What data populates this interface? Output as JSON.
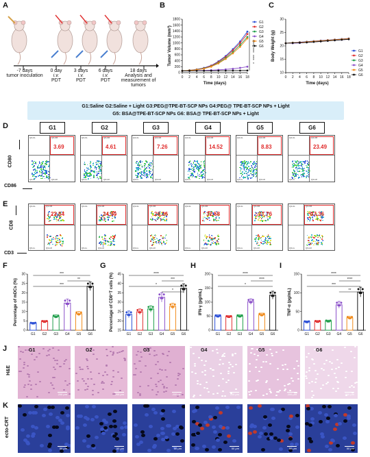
{
  "panels": [
    "A",
    "B",
    "C",
    "D",
    "E",
    "F",
    "G",
    "H",
    "I",
    "J",
    "K"
  ],
  "schematic": {
    "steps": [
      {
        "day": "-7 days",
        "desc1": "tumor inoculation",
        "desc2": ""
      },
      {
        "day": "0 day",
        "desc1": "i.v.",
        "desc2": "PDT"
      },
      {
        "day": "3 days",
        "desc1": "i.v.",
        "desc2": "PDT"
      },
      {
        "day": "6 days",
        "desc1": "i.v.",
        "desc2": "PDT"
      },
      {
        "day": "18 days",
        "desc1": "Analysis and",
        "desc2": "measurement of"
      },
      {
        "day": "",
        "desc1": "tumors",
        "desc2": ""
      }
    ]
  },
  "groups": {
    "line1": "G1:Saline  G2:Saline + Light  G3:PEG@TPE-BT-SCP NPs  G4:PEG@ TPE-BT-SCP NPs + Light",
    "line2": "G5: BSA@TPE-BT-SCP NPs        G6: BSA@ TPE-BT-SCP NPs + Light",
    "tabs": [
      "G1",
      "G2",
      "G3",
      "G4",
      "G5",
      "G6"
    ]
  },
  "colors": {
    "G1": "#2b4fd6",
    "G2": "#e03030",
    "G3": "#1f9e4a",
    "G4": "#8a4fc9",
    "G5": "#f08a1a",
    "G6": "#111111"
  },
  "panelD": {
    "ylabel": "CD80",
    "xlabel": "CD86",
    "values": [
      "3.69",
      "4.61",
      "7.26",
      "14.52",
      "8.83",
      "23.49"
    ]
  },
  "panelE": {
    "ylabel": "CD8",
    "xlabel": "CD3",
    "values": [
      "23.54",
      "24.90",
      "26.36",
      "32.58",
      "27.76",
      "37.36"
    ]
  },
  "chart_data": [
    {
      "type": "line",
      "panel": "B",
      "xlabel": "Time (days)",
      "ylabel": "Tumor Volume (mm³)",
      "x": [
        0,
        2,
        4,
        6,
        8,
        10,
        12,
        14,
        16,
        18
      ],
      "xticks": [
        "0",
        "2",
        "4",
        "6",
        "8",
        "10",
        "12",
        "14",
        "16",
        "18"
      ],
      "yticks": [
        "0",
        "200",
        "400",
        "600",
        "800",
        "1000",
        "1200",
        "1400",
        "1600",
        "1800"
      ],
      "ylim": [
        0,
        1800
      ],
      "series": [
        {
          "name": "G1",
          "values": [
            60,
            80,
            110,
            160,
            240,
            380,
            560,
            790,
            1050,
            1380
          ]
        },
        {
          "name": "G2",
          "values": [
            60,
            78,
            105,
            150,
            230,
            360,
            530,
            750,
            1000,
            1300
          ]
        },
        {
          "name": "G3",
          "values": [
            60,
            75,
            100,
            140,
            210,
            330,
            490,
            690,
            930,
            1200
          ]
        },
        {
          "name": "G4",
          "values": [
            60,
            62,
            68,
            74,
            82,
            95,
            110,
            130,
            160,
            200
          ]
        },
        {
          "name": "G5",
          "values": [
            60,
            72,
            95,
            130,
            200,
            310,
            460,
            650,
            870,
            1150
          ]
        },
        {
          "name": "G6",
          "values": [
            60,
            60,
            61,
            62,
            63,
            64,
            66,
            68,
            70,
            72
          ]
        }
      ],
      "sig": [
        "****",
        "****",
        "****",
        "*"
      ]
    },
    {
      "type": "line",
      "panel": "C",
      "xlabel": "Time (days)",
      "ylabel": "Body Weight (g)",
      "x": [
        0,
        2,
        4,
        6,
        8,
        10,
        12,
        14,
        16,
        18
      ],
      "xticks": [
        "0",
        "2",
        "4",
        "6",
        "8",
        "10",
        "12",
        "14",
        "16",
        "18"
      ],
      "yticks": [
        "10",
        "15",
        "20",
        "25",
        "30"
      ],
      "ylim": [
        10,
        30
      ],
      "series": [
        {
          "name": "G1",
          "values": [
            21,
            21.2,
            21.4,
            21.6,
            21.8,
            22,
            22.2,
            22.4,
            22.6,
            22.8
          ]
        },
        {
          "name": "G2",
          "values": [
            21,
            21.1,
            21.3,
            21.5,
            21.7,
            21.9,
            22.1,
            22.3,
            22.5,
            22.7
          ]
        },
        {
          "name": "G3",
          "values": [
            21,
            21.1,
            21.2,
            21.4,
            21.6,
            21.8,
            22,
            22.2,
            22.4,
            22.6
          ]
        },
        {
          "name": "G4",
          "values": [
            21,
            21,
            21.1,
            21.3,
            21.5,
            21.7,
            21.9,
            22.1,
            22.3,
            22.5
          ]
        },
        {
          "name": "G5",
          "values": [
            21,
            21.2,
            21.3,
            21.5,
            21.7,
            21.9,
            22.1,
            22.3,
            22.5,
            22.7
          ]
        },
        {
          "name": "G6",
          "values": [
            21,
            21.1,
            21.2,
            21.3,
            21.5,
            21.7,
            21.9,
            22.1,
            22.3,
            22.5
          ]
        }
      ]
    },
    {
      "type": "bar",
      "panel": "F",
      "ylabel": "Percentage of mDCs (%)",
      "categories": [
        "G1",
        "G2",
        "G3",
        "G4",
        "G5",
        "G6"
      ],
      "values": [
        3.7,
        4.6,
        7.3,
        14.5,
        8.8,
        23.5
      ],
      "errors": [
        0.5,
        0.6,
        0.9,
        2.2,
        1.2,
        2.3
      ],
      "yticks": [
        "0",
        "5",
        "10",
        "15",
        "20",
        "25",
        "30"
      ],
      "ylim": [
        0,
        30
      ],
      "sig": [
        "***",
        "**",
        "***"
      ]
    },
    {
      "type": "bar",
      "panel": "G",
      "ylabel": "Percentage of CD8⁺T cells (%)",
      "categories": [
        "G1",
        "G2",
        "G3",
        "G4",
        "G5",
        "G6"
      ],
      "values": [
        23.5,
        24.9,
        26.4,
        32.6,
        27.8,
        37.4
      ],
      "errors": [
        1.8,
        1.5,
        1.7,
        2.5,
        1.6,
        2.4
      ],
      "yticks": [
        "15",
        "20",
        "25",
        "30",
        "35",
        "40",
        "45"
      ],
      "ylim": [
        15,
        45
      ],
      "sig": [
        "****",
        "***",
        "*",
        "*"
      ]
    },
    {
      "type": "bar",
      "panel": "H",
      "ylabel": "IFN-γ (pg/mL)",
      "categories": [
        "G1",
        "G2",
        "G3",
        "G4",
        "G5",
        "G6"
      ],
      "values": [
        50,
        48,
        50,
        102,
        55,
        125
      ],
      "errors": [
        5,
        4,
        5,
        10,
        6,
        14
      ],
      "yticks": [
        "0",
        "50",
        "100",
        "150",
        "200"
      ],
      "ylim": [
        0,
        200
      ],
      "sig": [
        "****",
        "****",
        "*"
      ]
    },
    {
      "type": "bar",
      "panel": "I",
      "ylabel": "TNF-α (pg/mL)",
      "categories": [
        "G1",
        "G2",
        "G3",
        "G4",
        "G5",
        "G6"
      ],
      "values": [
        22,
        23,
        24,
        68,
        33,
        102
      ],
      "errors": [
        3,
        3,
        3,
        9,
        4,
        13
      ],
      "yticks": [
        "0",
        "50",
        "100",
        "150"
      ],
      "ylim": [
        0,
        150
      ],
      "sig": [
        "****",
        "****",
        "***",
        "**"
      ]
    }
  ],
  "panelJ": {
    "label": "H&E",
    "scale": "200 μm",
    "names": [
      "G1",
      "G2",
      "G3",
      "G4",
      "G5",
      "G6"
    ]
  },
  "panelK": {
    "label": "ecto-CRT",
    "scale": "50 μm"
  }
}
